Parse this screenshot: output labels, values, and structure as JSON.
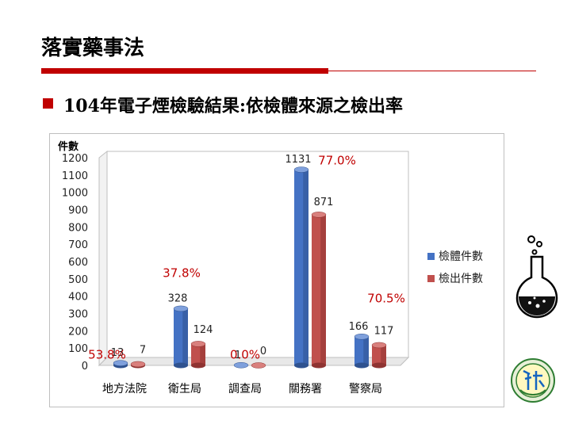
{
  "slide": {
    "title": "落實藥事法",
    "subtitle": "104年電子煙檢驗結果:依檢體來源之檢出率"
  },
  "colors": {
    "accent_red": "#c00000",
    "series1": "#4472c4",
    "series2": "#c0504d",
    "percent_label": "#c00000"
  },
  "icons": [
    "flask-icon",
    "emblem-icon"
  ],
  "chart_data": {
    "type": "bar",
    "ylabel": "件數",
    "ylim": [
      0,
      1200
    ],
    "yticks": [
      0,
      100,
      200,
      300,
      400,
      500,
      600,
      700,
      800,
      900,
      1000,
      1100,
      1200
    ],
    "categories": [
      "地方法院",
      "衛生局",
      "調查局",
      "關務署",
      "警察局"
    ],
    "series": [
      {
        "name": "檢體件數",
        "values": [
          13,
          328,
          1,
          1131,
          166
        ]
      },
      {
        "name": "檢出件數",
        "values": [
          7,
          124,
          0,
          871,
          117
        ]
      }
    ],
    "percent_labels": [
      "53.8%",
      "37.8%",
      "0.0%",
      "77.0%",
      "70.5%"
    ],
    "legend": "right",
    "style": "3d-cylinder",
    "grid": false
  }
}
